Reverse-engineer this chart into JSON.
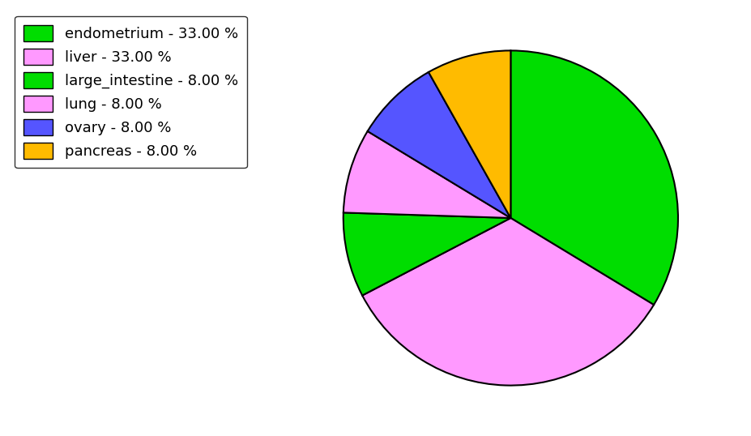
{
  "labels": [
    "endometrium",
    "liver",
    "large_intestine",
    "lung",
    "ovary",
    "pancreas"
  ],
  "values": [
    33.0,
    33.0,
    8.0,
    8.0,
    8.0,
    8.0
  ],
  "colors": [
    "#00dd00",
    "#ff99ff",
    "#00dd00",
    "#ff99ff",
    "#5555ff",
    "#ffbb00"
  ],
  "legend_labels": [
    "endometrium - 33.00 %",
    "liver - 33.00 %",
    "large_intestine - 8.00 %",
    "lung - 8.00 %",
    "ovary - 8.00 %",
    "pancreas - 8.00 %"
  ],
  "startangle": 90,
  "figsize": [
    9.27,
    5.38
  ],
  "dpi": 100
}
